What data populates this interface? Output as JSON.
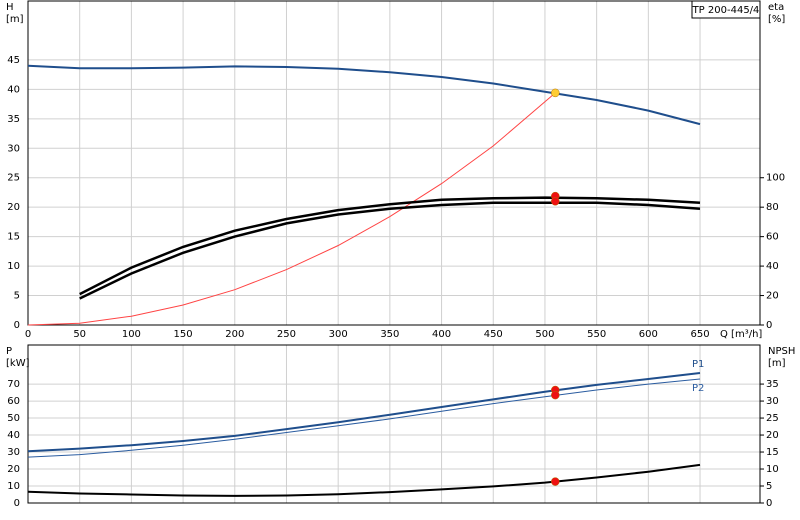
{
  "chart_data": [
    {
      "type": "line",
      "title": "TP 200-445/4",
      "ylabel": [
        "H",
        "[m]"
      ],
      "y2label": [
        "eta",
        "[%]"
      ],
      "xlabel": "Q [m³/h]",
      "xlim": [
        0,
        708
      ],
      "xticks": [
        0,
        50,
        100,
        150,
        200,
        250,
        300,
        350,
        400,
        450,
        500,
        550,
        600,
        650
      ],
      "ylim": [
        0,
        55
      ],
      "yticks": [
        0,
        5,
        10,
        15,
        20,
        25,
        30,
        35,
        40,
        45
      ],
      "y2lim": [
        0,
        220
      ],
      "y2ticks": [
        0,
        20,
        40,
        60,
        80,
        100
      ],
      "grid": true,
      "series": [
        {
          "color": "#1f4e8c",
          "width": 2,
          "x": [
            0,
            50,
            100,
            150,
            200,
            250,
            300,
            350,
            400,
            450,
            500,
            550,
            600,
            650
          ],
          "values": [
            44,
            43.6,
            43.6,
            43.7,
            43.9,
            43.8,
            43.5,
            42.9,
            42.1,
            41.0,
            39.6,
            38.2,
            36.4,
            34.1
          ]
        },
        {
          "color": "#ff4444",
          "width": 1,
          "x": [
            0,
            50,
            100,
            150,
            200,
            250,
            300,
            350,
            400,
            450,
            510
          ],
          "values": [
            0,
            0.3,
            1.5,
            3.4,
            6.0,
            9.4,
            13.5,
            18.4,
            24.0,
            30.4,
            39.4
          ]
        },
        {
          "color": "#000000",
          "width": 2.5,
          "axis": "y2",
          "x": [
            50,
            100,
            150,
            200,
            250,
            300,
            350,
            400,
            450,
            500,
            550,
            600,
            650
          ],
          "values": [
            21,
            39,
            53,
            64,
            72,
            78,
            82,
            85,
            86,
            86.5,
            86,
            85,
            83
          ]
        },
        {
          "color": "#000000",
          "width": 2.5,
          "axis": "y2",
          "x": [
            50,
            100,
            150,
            200,
            250,
            300,
            350,
            400,
            450,
            500,
            550,
            600,
            650
          ],
          "values": [
            18,
            35,
            49,
            60,
            69,
            75,
            79,
            81.5,
            83,
            83,
            83,
            81.5,
            79
          ]
        },
        {
          "color": "#ffcc33",
          "marker": true,
          "x": [
            510
          ],
          "values": [
            39.4
          ]
        },
        {
          "color": "#ee1111",
          "marker": true,
          "axis": "y2",
          "x": [
            510,
            510
          ],
          "values": [
            87.5,
            84
          ]
        }
      ]
    },
    {
      "type": "line",
      "ylabel": [
        "P",
        "[kW]"
      ],
      "y2label": [
        "NPSH",
        "[m]"
      ],
      "xlim": [
        0,
        708
      ],
      "ylim": [
        0,
        93
      ],
      "yticks": [
        0,
        10,
        20,
        30,
        40,
        50,
        60,
        70
      ],
      "y2lim": [
        0,
        46.5
      ],
      "y2ticks": [
        0,
        5,
        10,
        15,
        20,
        25,
        30,
        35
      ],
      "grid": true,
      "series": [
        {
          "name": "P1",
          "color": "#1f4e8c",
          "width": 2,
          "x": [
            0,
            50,
            100,
            150,
            200,
            250,
            300,
            350,
            400,
            450,
            500,
            550,
            600,
            650
          ],
          "values": [
            30.5,
            32,
            34,
            36.5,
            39.5,
            43.5,
            47.5,
            52,
            56.5,
            61,
            65.5,
            69.5,
            73,
            76.5
          ]
        },
        {
          "name": "P2",
          "color": "#2a5ca0",
          "width": 1,
          "x": [
            0,
            50,
            100,
            150,
            200,
            250,
            300,
            350,
            400,
            450,
            500,
            550,
            600,
            650
          ],
          "values": [
            27,
            28.5,
            31,
            34,
            37.5,
            41.5,
            45.5,
            49.5,
            54,
            58.5,
            62.5,
            66.5,
            70,
            73
          ]
        },
        {
          "color": "#000000",
          "width": 2,
          "axis": "y2",
          "x": [
            0,
            50,
            100,
            150,
            200,
            250,
            300,
            350,
            400,
            450,
            500,
            550,
            600,
            650
          ],
          "values": [
            3.3,
            2.8,
            2.5,
            2.2,
            2.1,
            2.2,
            2.6,
            3.2,
            4.0,
            4.9,
            6.0,
            7.5,
            9.2,
            11.2
          ]
        },
        {
          "color": "#ee1111",
          "marker": true,
          "x": [
            510,
            510
          ],
          "values": [
            66.5,
            63.5
          ]
        },
        {
          "color": "#ee1111",
          "marker": true,
          "axis": "y2",
          "x": [
            510
          ],
          "values": [
            6.3
          ]
        }
      ]
    }
  ]
}
